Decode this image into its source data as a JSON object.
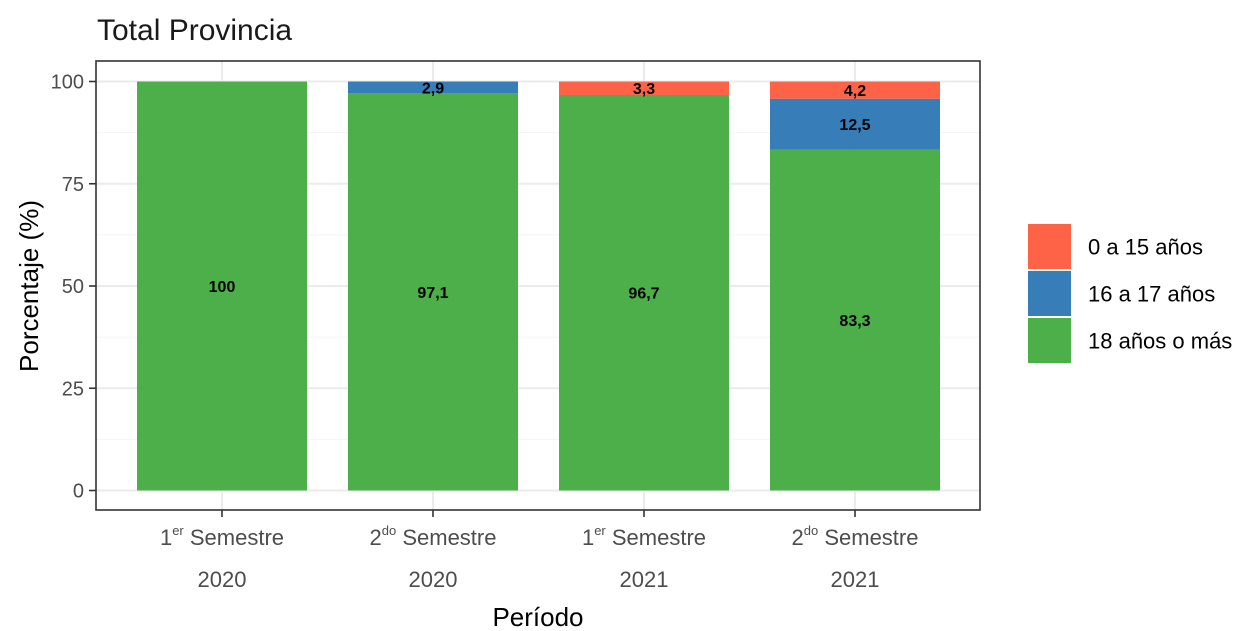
{
  "chart_data": {
    "type": "bar",
    "stacked": true,
    "title": "Total Provincia",
    "xlabel": "Período",
    "ylabel": "Porcentaje (%)",
    "ylim": [
      0,
      100
    ],
    "yticks": [
      0,
      25,
      50,
      75,
      100
    ],
    "categories": [
      {
        "main": "1",
        "sup": "er",
        "rest": " Semestre",
        "year": "2020"
      },
      {
        "main": "2",
        "sup": "do",
        "rest": " Semestre",
        "year": "2020"
      },
      {
        "main": "1",
        "sup": "er",
        "rest": " Semestre",
        "year": "2021"
      },
      {
        "main": "2",
        "sup": "do",
        "rest": " Semestre",
        "year": "2021"
      }
    ],
    "series": [
      {
        "name": "18 años o más",
        "color": "#4daf4a",
        "values": [
          100,
          97.1,
          96.7,
          83.3
        ],
        "labels": [
          "100",
          "97,1",
          "96,7",
          "83,3"
        ]
      },
      {
        "name": "16 a 17 años",
        "color": "#377eb8",
        "values": [
          0,
          2.9,
          0,
          12.5
        ],
        "labels": [
          "",
          "2,9",
          "",
          "12,5"
        ]
      },
      {
        "name": "0 a 15 años",
        "color": "#ff6347",
        "values": [
          0,
          0,
          3.3,
          4.2
        ],
        "labels": [
          "",
          "",
          "3,3",
          "4,2"
        ]
      }
    ],
    "legend": {
      "position": "right",
      "order": [
        "0 a 15 años",
        "16 a 17 años",
        "18 años o más"
      ]
    },
    "grid": true
  }
}
